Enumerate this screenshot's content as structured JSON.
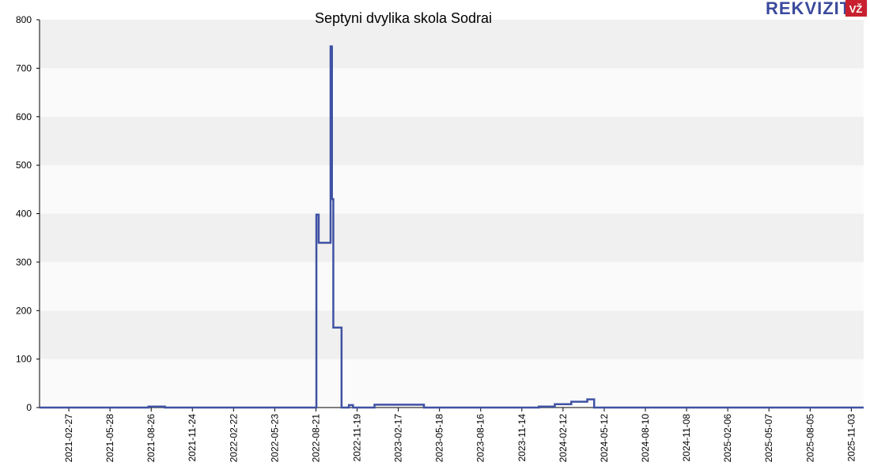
{
  "logo": {
    "text": "REKVIZITAI",
    "badge": "VŽ",
    "brand_color": "#3b4a9c",
    "badge_color": "#c8202f"
  },
  "chart_data": {
    "type": "line",
    "title": "Septyni dvylika skola Sodrai",
    "xlabel": "",
    "ylabel": "",
    "ylim": [
      0,
      800
    ],
    "yticks": [
      0,
      100,
      200,
      300,
      400,
      500,
      600,
      700,
      800
    ],
    "xlim": [
      "2020-12-25",
      "2025-11-30"
    ],
    "xticks": [
      "2021-02-27",
      "2021-05-28",
      "2021-08-26",
      "2021-11-24",
      "2022-02-22",
      "2022-05-23",
      "2022-08-21",
      "2022-11-19",
      "2023-02-17",
      "2023-05-18",
      "2023-08-16",
      "2023-11-14",
      "2024-02-12",
      "2024-05-12",
      "2024-08-10",
      "2024-11-08",
      "2025-02-06",
      "2025-05-07",
      "2025-08-05",
      "2025-11-03"
    ],
    "grid": "horizontal bands",
    "line_color": "#3f51a3",
    "band_colors": [
      "#f0f0f0",
      "#fafafa"
    ],
    "series": [
      {
        "points": [
          [
            "2020-12-25",
            0
          ],
          [
            "2021-08-20",
            0
          ],
          [
            "2021-08-20",
            2
          ],
          [
            "2021-09-25",
            2
          ],
          [
            "2021-09-25",
            0
          ],
          [
            "2022-08-22",
            0
          ],
          [
            "2022-08-22",
            398
          ],
          [
            "2022-08-27",
            398
          ],
          [
            "2022-08-27",
            340
          ],
          [
            "2022-09-22",
            340
          ],
          [
            "2022-09-22",
            745
          ],
          [
            "2022-09-25",
            745
          ],
          [
            "2022-09-25",
            430
          ],
          [
            "2022-09-28",
            430
          ],
          [
            "2022-09-28",
            165
          ],
          [
            "2022-10-16",
            165
          ],
          [
            "2022-10-16",
            0
          ],
          [
            "2022-11-01",
            0
          ],
          [
            "2022-11-01",
            5
          ],
          [
            "2022-11-10",
            5
          ],
          [
            "2022-11-10",
            0
          ],
          [
            "2022-12-27",
            0
          ],
          [
            "2022-12-27",
            6
          ],
          [
            "2023-04-14",
            6
          ],
          [
            "2023-04-14",
            0
          ],
          [
            "2023-12-21",
            0
          ],
          [
            "2023-12-21",
            2
          ],
          [
            "2024-01-25",
            2
          ],
          [
            "2024-01-25",
            7
          ],
          [
            "2024-03-01",
            7
          ],
          [
            "2024-03-01",
            12
          ],
          [
            "2024-04-05",
            12
          ],
          [
            "2024-04-05",
            17
          ],
          [
            "2024-04-20",
            17
          ],
          [
            "2024-04-20",
            0
          ],
          [
            "2025-11-30",
            0
          ]
        ]
      }
    ]
  }
}
